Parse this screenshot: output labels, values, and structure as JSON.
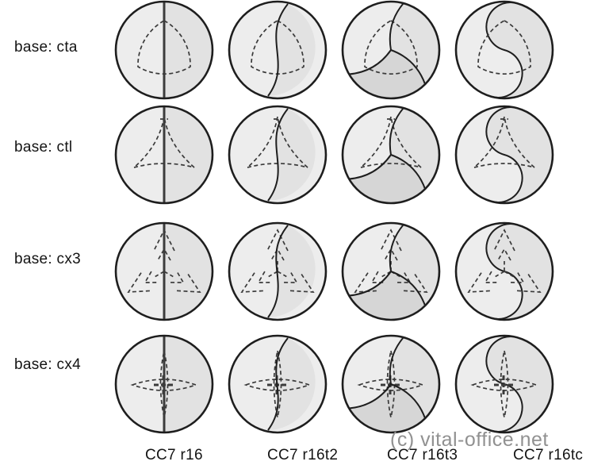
{
  "figure": {
    "background": "#ffffff",
    "rows": [
      {
        "label": "base: cta",
        "motif": "cta",
        "motif_desc": "dashed rounded-triangle outline"
      },
      {
        "label": "base: ctl",
        "motif": "ctl",
        "motif_desc": "dashed concave three-arm outline"
      },
      {
        "label": "base: cx3",
        "motif": "cx3",
        "motif_desc": "dashed three-branch chevron clusters"
      },
      {
        "label": "base: cx4",
        "motif": "cx4",
        "motif_desc": "dashed four-point lens star with bold cross"
      }
    ],
    "columns": [
      {
        "label": "CC7 r16",
        "divider": "vertical-line"
      },
      {
        "label": "CC7 r16t2",
        "divider": "gentle-s-curve"
      },
      {
        "label": "CC7 r16t3",
        "divider": "three-curved-sectors"
      },
      {
        "label": "CC7 r16tc",
        "divider": "taiji-s-curve"
      }
    ],
    "watermark": "(c) vital-office.net",
    "colors": {
      "circle_fill": "#ededed",
      "half_shade": "#e2e2e2",
      "sector_shade": "#d6d6d6",
      "outline": "#1e1e1e",
      "dash_stroke": "#3a3a3a",
      "divider_line": "#3c3c3c",
      "label_text": "#141414",
      "watermark_text": "#919191"
    }
  }
}
